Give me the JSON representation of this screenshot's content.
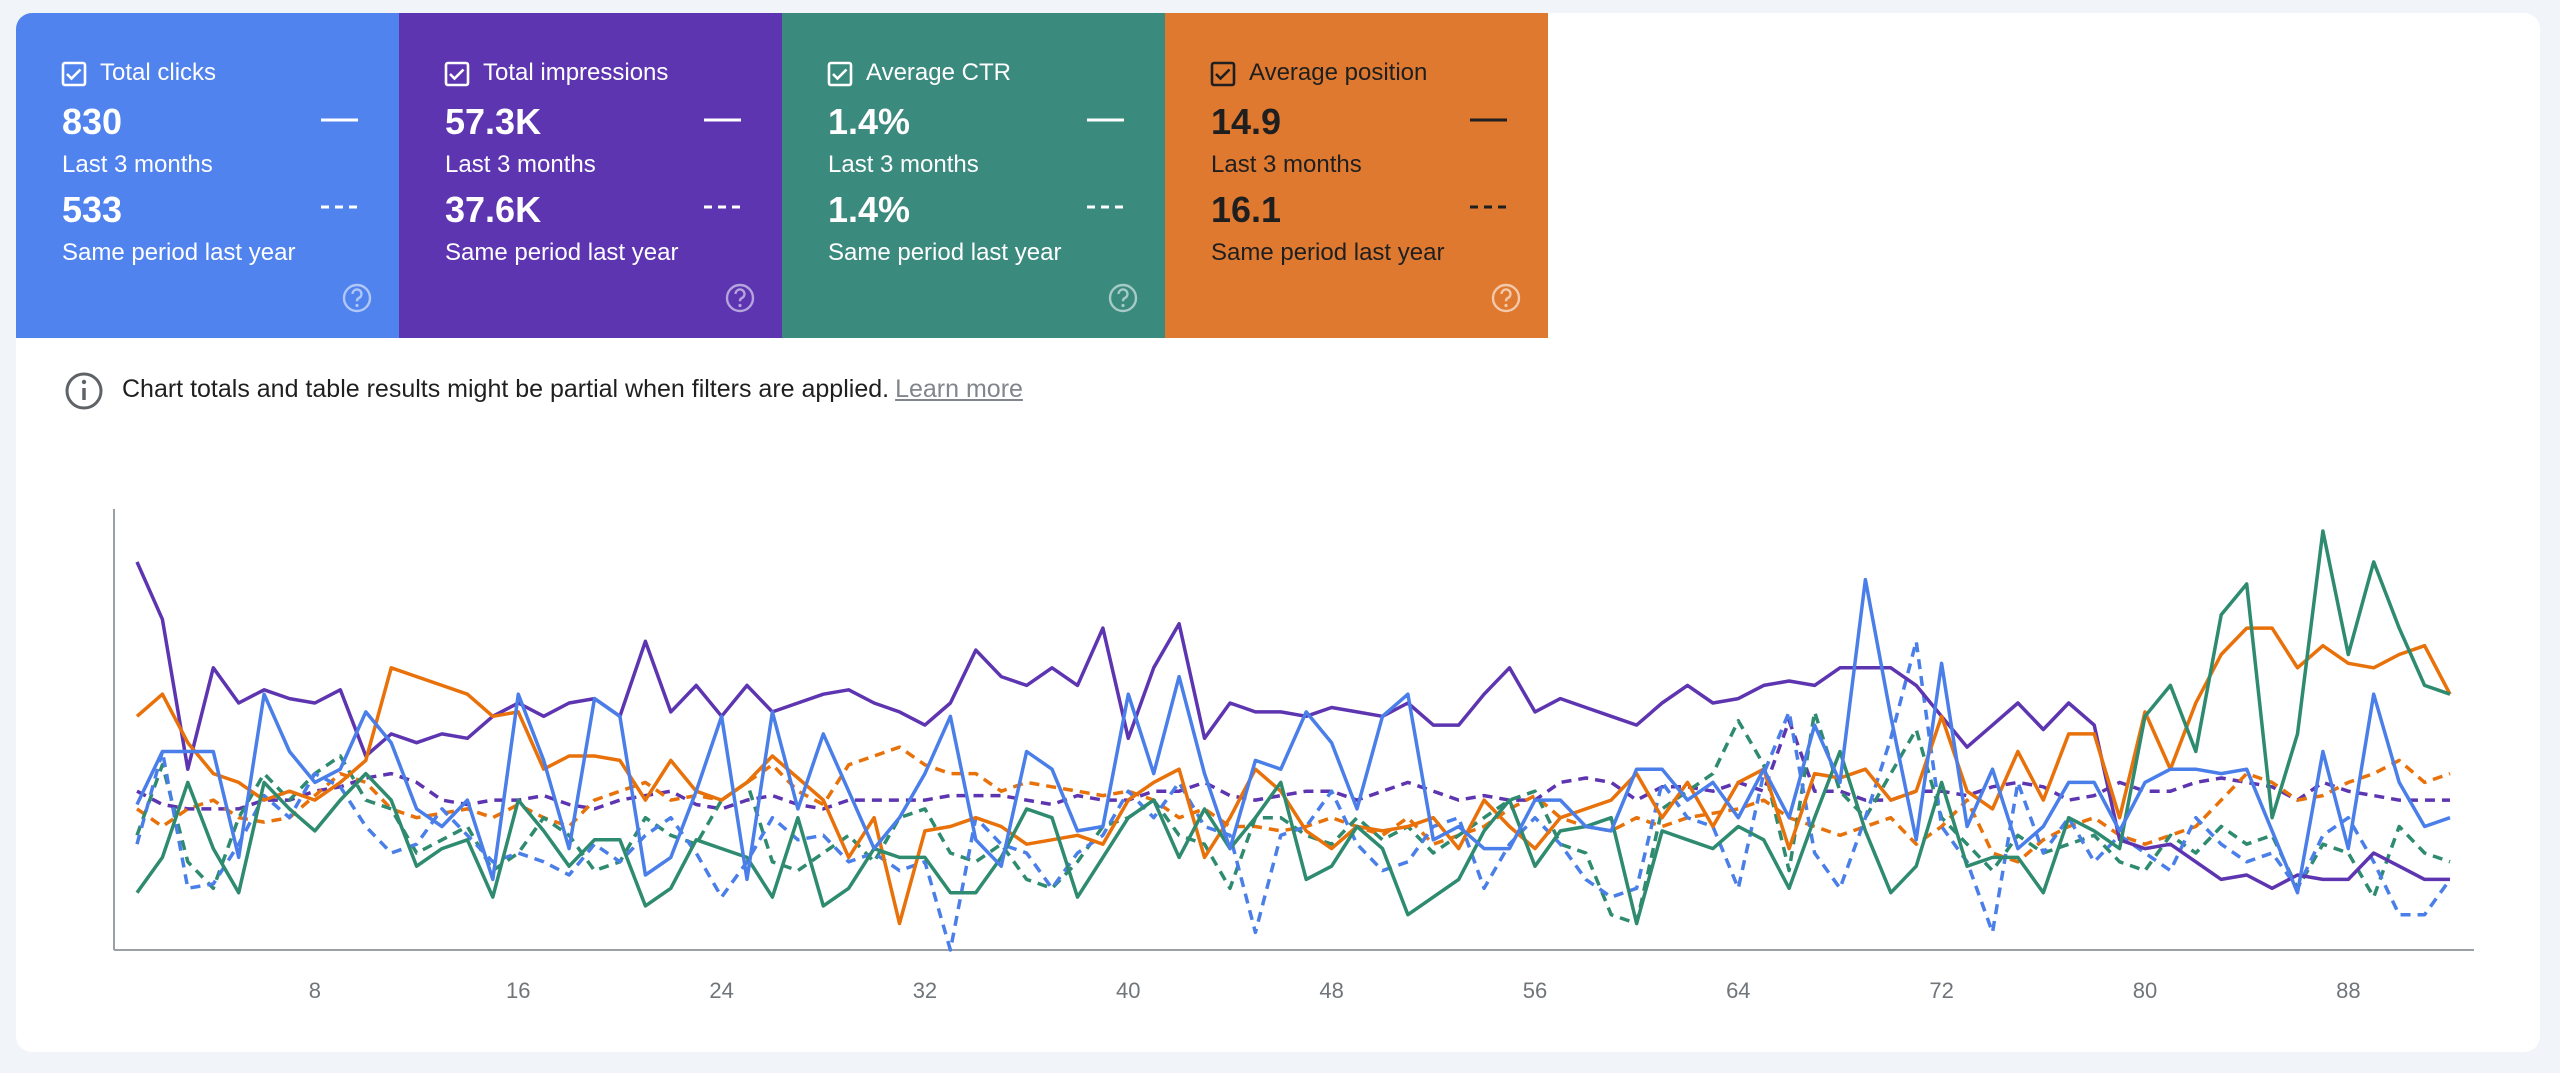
{
  "cards": [
    {
      "title": "Total clicks",
      "value": "830",
      "period": "Last 3 months",
      "prev_value": "533",
      "prev_period": "Same period last year",
      "color": "#5083ed"
    },
    {
      "title": "Total impressions",
      "value": "57.3K",
      "period": "Last 3 months",
      "prev_value": "37.6K",
      "prev_period": "Same period last year",
      "color": "#5e35b1"
    },
    {
      "title": "Average CTR",
      "value": "1.4%",
      "period": "Last 3 months",
      "prev_value": "1.4%",
      "prev_period": "Same period last year",
      "color": "#3b8a7e"
    },
    {
      "title": "Average position",
      "value": "14.9",
      "period": "Last 3 months",
      "prev_value": "16.1",
      "prev_period": "Same period last year",
      "color": "#e07930"
    }
  ],
  "notice": {
    "text": "Chart totals and table results might be partial when filters are applied.",
    "link": "Learn more"
  },
  "chart_data": {
    "type": "line",
    "x": [
      1,
      2,
      3,
      4,
      5,
      6,
      7,
      8,
      9,
      10,
      11,
      12,
      13,
      14,
      15,
      16,
      17,
      18,
      19,
      20,
      21,
      22,
      23,
      24,
      25,
      26,
      27,
      28,
      29,
      30,
      31,
      32,
      33,
      34,
      35,
      36,
      37,
      38,
      39,
      40,
      41,
      42,
      43,
      44,
      45,
      46,
      47,
      48,
      49,
      50,
      51,
      52,
      53,
      54,
      55,
      56,
      57,
      58,
      59,
      60,
      61,
      62,
      63,
      64,
      65,
      66,
      67,
      68,
      69,
      70,
      71,
      72,
      73,
      74,
      75,
      76,
      77,
      78,
      79,
      80,
      81,
      82,
      83,
      84,
      85,
      86,
      87,
      88,
      89,
      90,
      91,
      92
    ],
    "xlim": [
      1,
      92
    ],
    "xticks": [
      8,
      16,
      24,
      32,
      40,
      48,
      56,
      64,
      72,
      80,
      88
    ],
    "ylim": [
      0,
      100
    ],
    "series": [
      {
        "color": "#5e35b1",
        "dashed": true,
        "values": [
          36,
          33,
          32,
          32,
          32,
          34,
          34,
          36,
          37,
          39,
          40,
          38,
          34,
          33,
          34,
          34,
          35,
          33,
          32,
          34,
          35,
          36,
          33,
          32,
          34,
          35,
          33,
          32,
          34,
          34,
          34,
          34,
          35,
          35,
          35,
          34,
          33,
          35,
          34,
          34,
          36,
          36,
          38,
          35,
          34,
          35,
          36,
          36,
          34,
          36,
          38,
          36,
          34,
          35,
          34,
          34,
          38,
          39,
          38,
          34,
          37,
          37,
          36,
          38,
          36,
          52,
          36,
          36,
          34,
          34,
          36,
          36,
          35,
          37,
          38,
          37,
          34,
          35,
          38,
          36,
          36,
          38,
          39,
          38,
          37,
          34,
          38,
          36,
          35,
          34,
          34,
          34
        ]
      },
      {
        "color": "#e8710a",
        "dashed": true,
        "values": [
          32,
          28,
          32,
          34,
          30,
          29,
          30,
          35,
          40,
          38,
          32,
          30,
          31,
          32,
          30,
          33,
          30,
          28,
          34,
          36,
          38,
          34,
          35,
          34,
          38,
          42,
          36,
          33,
          42,
          44,
          46,
          42,
          40,
          40,
          36,
          38,
          37,
          36,
          35,
          36,
          34,
          30,
          32,
          28,
          28,
          27,
          28,
          30,
          28,
          26,
          30,
          24,
          26,
          28,
          32,
          35,
          30,
          28,
          27,
          30,
          28,
          30,
          31,
          32,
          34,
          30,
          28,
          26,
          28,
          30,
          24,
          28,
          34,
          22,
          20,
          25,
          28,
          30,
          26,
          24,
          26,
          28,
          34,
          40,
          38,
          34,
          35,
          38,
          40,
          43,
          38,
          40
        ]
      },
      {
        "color": "#2e8b6f",
        "dashed": true,
        "values": [
          26,
          42,
          20,
          14,
          30,
          40,
          34,
          40,
          44,
          34,
          32,
          22,
          25,
          28,
          18,
          22,
          30,
          26,
          18,
          20,
          30,
          26,
          24,
          34,
          38,
          20,
          18,
          22,
          26,
          20,
          30,
          32,
          22,
          20,
          24,
          16,
          14,
          20,
          28,
          30,
          34,
          26,
          24,
          14,
          30,
          30,
          26,
          24,
          30,
          25,
          28,
          22,
          26,
          30,
          34,
          36,
          24,
          22,
          8,
          6,
          32,
          36,
          40,
          52,
          42,
          18,
          54,
          36,
          30,
          40,
          50,
          30,
          24,
          18,
          26,
          22,
          24,
          26,
          20,
          18,
          26,
          22,
          28,
          24,
          26,
          14,
          24,
          22,
          12,
          28,
          22,
          20
        ]
      },
      {
        "color": "#4a7ee8",
        "dashed": true,
        "values": [
          24,
          45,
          14,
          15,
          24,
          35,
          30,
          40,
          37,
          28,
          22,
          24,
          32,
          26,
          20,
          22,
          20,
          17,
          24,
          20,
          26,
          30,
          22,
          12,
          20,
          30,
          25,
          26,
          20,
          22,
          18,
          20,
          0,
          30,
          24,
          22,
          14,
          22,
          26,
          36,
          30,
          38,
          28,
          26,
          4,
          26,
          28,
          36,
          24,
          18,
          20,
          28,
          30,
          14,
          24,
          30,
          24,
          16,
          12,
          14,
          38,
          30,
          28,
          14,
          40,
          54,
          22,
          14,
          30,
          48,
          70,
          28,
          20,
          4,
          38,
          22,
          30,
          20,
          26,
          22,
          18,
          30,
          24,
          20,
          22,
          14,
          26,
          30,
          20,
          8,
          8,
          16
        ]
      },
      {
        "color": "#5e35b1",
        "dashed": false,
        "values": [
          88,
          75,
          41,
          64,
          56,
          59,
          57,
          56,
          59,
          44,
          49,
          47,
          49,
          48,
          53,
          56,
          53,
          56,
          57,
          53,
          70,
          54,
          60,
          53,
          60,
          54,
          56,
          58,
          59,
          56,
          54,
          51,
          56,
          68,
          62,
          60,
          64,
          60,
          73,
          48,
          64,
          74,
          48,
          56,
          54,
          54,
          53,
          55,
          54,
          53,
          56,
          51,
          51,
          58,
          64,
          54,
          57,
          55,
          53,
          51,
          56,
          60,
          56,
          57,
          60,
          61,
          60,
          64,
          64,
          64,
          60,
          53,
          46,
          51,
          56,
          50,
          56,
          51,
          25,
          23,
          24,
          20,
          16,
          17,
          14,
          17,
          16,
          16,
          22,
          19,
          16,
          16
        ]
      },
      {
        "color": "#e8710a",
        "dashed": false,
        "values": [
          53,
          58,
          47,
          40,
          38,
          34,
          36,
          34,
          38,
          43,
          64,
          62,
          60,
          58,
          53,
          54,
          41,
          44,
          44,
          43,
          34,
          43,
          36,
          34,
          38,
          44,
          39,
          34,
          21,
          30,
          6,
          27,
          28,
          30,
          28,
          24,
          25,
          26,
          24,
          34,
          38,
          41,
          21,
          30,
          41,
          36,
          27,
          23,
          28,
          27,
          28,
          30,
          23,
          34,
          28,
          23,
          30,
          32,
          34,
          40,
          30,
          38,
          28,
          38,
          41,
          23,
          40,
          39,
          41,
          34,
          36,
          53,
          36,
          32,
          45,
          34,
          49,
          49,
          30,
          54,
          41,
          56,
          67,
          73,
          73,
          64,
          69,
          65,
          64,
          67,
          69,
          58
        ]
      },
      {
        "color": "#2e8b6f",
        "dashed": false,
        "values": [
          13,
          21,
          38,
          23,
          13,
          38,
          32,
          27,
          34,
          40,
          34,
          19,
          23,
          25,
          12,
          34,
          27,
          19,
          25,
          25,
          10,
          14,
          25,
          23,
          21,
          12,
          30,
          10,
          14,
          23,
          21,
          21,
          13,
          13,
          21,
          32,
          30,
          12,
          21,
          30,
          34,
          21,
          32,
          23,
          30,
          38,
          16,
          19,
          28,
          23,
          8,
          12,
          16,
          27,
          34,
          19,
          27,
          28,
          30,
          6,
          27,
          25,
          23,
          28,
          25,
          14,
          30,
          45,
          27,
          13,
          19,
          38,
          19,
          21,
          21,
          13,
          30,
          27,
          23,
          53,
          60,
          45,
          76,
          83,
          30,
          49,
          95,
          67,
          88,
          73,
          60,
          58
        ]
      },
      {
        "color": "#4a7ee8",
        "dashed": false,
        "values": [
          33,
          45,
          45,
          45,
          21,
          58,
          45,
          38,
          41,
          54,
          47,
          32,
          28,
          34,
          16,
          58,
          43,
          23,
          57,
          53,
          17,
          21,
          36,
          53,
          16,
          54,
          32,
          49,
          36,
          23,
          30,
          40,
          53,
          25,
          19,
          45,
          41,
          27,
          28,
          58,
          40,
          62,
          40,
          23,
          43,
          41,
          54,
          47,
          32,
          53,
          58,
          25,
          28,
          23,
          23,
          34,
          34,
          28,
          27,
          41,
          41,
          34,
          38,
          30,
          41,
          30,
          51,
          38,
          84,
          53,
          25,
          65,
          28,
          41,
          23,
          28,
          38,
          38,
          27,
          38,
          41,
          41,
          40,
          41,
          27,
          13,
          45,
          23,
          58,
          38,
          28,
          30
        ]
      }
    ]
  }
}
